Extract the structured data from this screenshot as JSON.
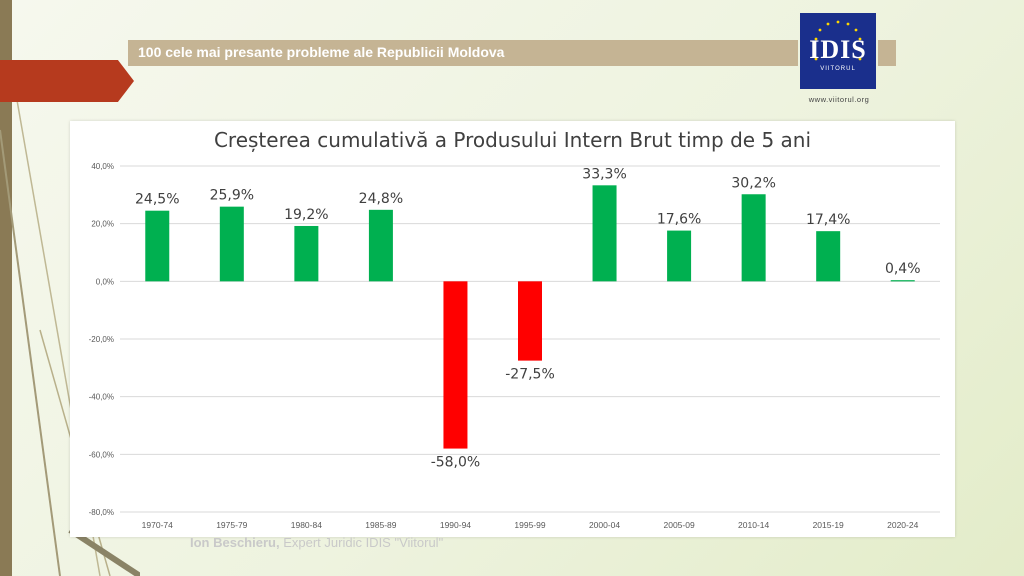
{
  "slide": {
    "header_title": "100 cele mai presante probleme ale Republicii Moldova",
    "logo_text": "IDIS",
    "logo_subtitle": "VIITORUL",
    "logo_url": "www.viitorul.org",
    "footer_author": "Ion Beschieru,",
    "footer_role": "Expert Juridic IDIS \"Viitorul\"",
    "colors": {
      "positive": "#00b050",
      "negative": "#ff0000",
      "header": "#c5b494",
      "accent": "#b63a1e",
      "logo_bg": "#1a2f8c"
    }
  },
  "chart_data": {
    "type": "bar",
    "title": "Creșterea cumulativă a Produsului Intern Brut timp de 5 ani",
    "xlabel": "",
    "ylabel": "",
    "categories": [
      "1970-74",
      "1975-79",
      "1980-84",
      "1985-89",
      "1990-94",
      "1995-99",
      "2000-04",
      "2005-09",
      "2010-14",
      "2015-19",
      "2020-24"
    ],
    "values": [
      24.5,
      25.9,
      19.2,
      24.8,
      -58.0,
      -27.5,
      33.3,
      17.6,
      30.2,
      17.4,
      0.4
    ],
    "data_labels": [
      "24,5%",
      "25,9%",
      "19,2%",
      "24,8%",
      "-58,0%",
      "-27,5%",
      "33,3%",
      "17,6%",
      "30,2%",
      "17,4%",
      "0,4%"
    ],
    "ylim": [
      -80,
      40
    ],
    "yticks": [
      40,
      20,
      0,
      -20,
      -40,
      -60,
      -80
    ],
    "ytick_labels": [
      "40,0%",
      "20,0%",
      "0,0%",
      "-20,0%",
      "-40,0%",
      "-60,0%",
      "-80,0%"
    ],
    "grid": true,
    "legend": "none"
  }
}
